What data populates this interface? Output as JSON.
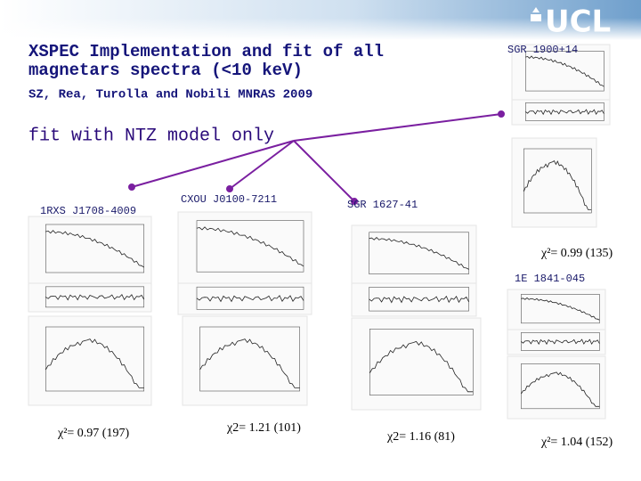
{
  "header": {
    "logo": "UCL",
    "title_lines": [
      "XSPEC Implementation and fit of all",
      "magnetars spectra (<10 keV)"
    ],
    "reference": "SZ, Rea, Turolla and Nobili MNRAS 2009"
  },
  "subtitle": "fit with NTZ model only",
  "sources": [
    {
      "name": "1RXS J1708-4009",
      "fit": "χ²= 0.97 (197)"
    },
    {
      "name": "CXOU J0100-7211",
      "fit": "χ2= 1.21 (101)"
    },
    {
      "name": "SGR 1627-41",
      "fit": "χ2= 1.16 (81)"
    },
    {
      "name": "SGR 1900+14",
      "fit": "χ²= 0.99 (135)"
    },
    {
      "name": "1E 1841-045",
      "fit": "χ²= 1.04 (152)"
    }
  ]
}
